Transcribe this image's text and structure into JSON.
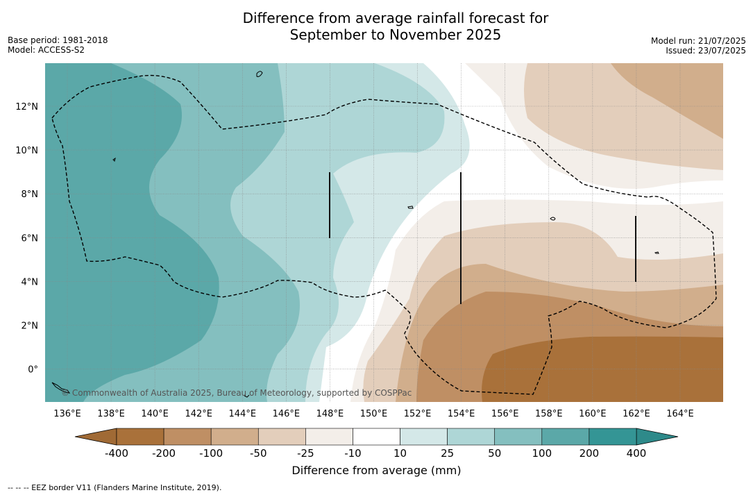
{
  "header": {
    "title_line1": "Difference from average rainfall forecast for",
    "title_line2": "September to November 2025",
    "base_period": "Base period: 1981-2018",
    "model": "Model: ACCESS-S2",
    "model_run": "Model run: 21/07/2025",
    "issued": "Issued: 23/07/2025"
  },
  "map": {
    "lon_labels": [
      "136°E",
      "138°E",
      "140°E",
      "142°E",
      "144°E",
      "146°E",
      "148°E",
      "150°E",
      "152°E",
      "154°E",
      "156°E",
      "158°E",
      "160°E",
      "162°E",
      "164°E"
    ],
    "lat_labels": [
      "12°N",
      "10°N",
      "8°N",
      "6°N",
      "4°N",
      "2°N",
      "0°"
    ],
    "copyright": "© Commonwealth of Australia 2025, Bureau of Meteorology, supported by COSPPac"
  },
  "colorbar": {
    "title": "Difference from average (mm)",
    "ticks": [
      "-400",
      "-200",
      "-100",
      "-50",
      "-25",
      "-10",
      "10",
      "25",
      "50",
      "100",
      "200",
      "400"
    ],
    "colors": [
      "#a9713a",
      "#bf8f64",
      "#d1ae8c",
      "#e3cebb",
      "#f3eee9",
      "#ffffff",
      "#d4e8e8",
      "#aed6d6",
      "#84bfbf",
      "#5ba8a8",
      "#349595"
    ],
    "under_color": "#a06a35",
    "over_color": "#2e8a8a"
  },
  "footer": {
    "legend_text": "--  --  -- EEZ border V11 (Flanders Marine Institute, 2019)."
  }
}
